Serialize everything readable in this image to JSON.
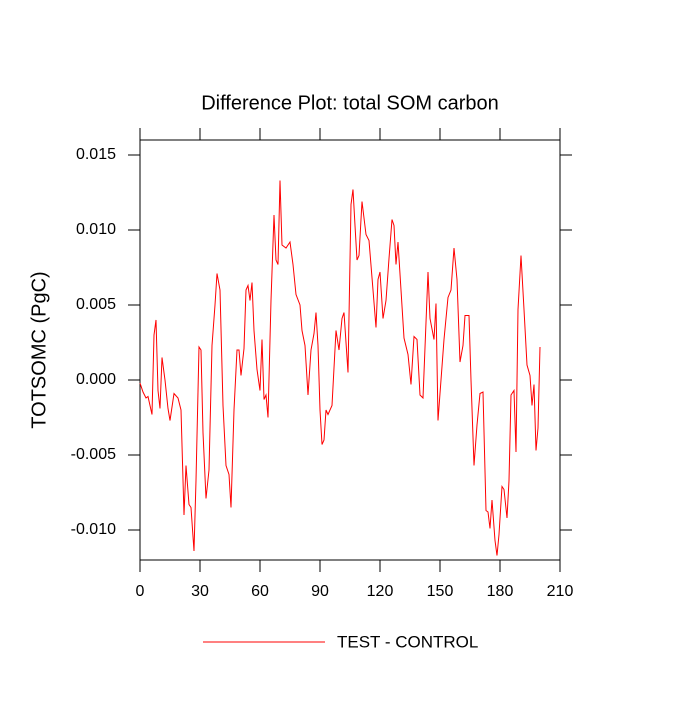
{
  "chart_data": {
    "type": "line",
    "title": "Difference Plot: total SOM carbon",
    "y_label": "TOTSOMC  (PgC)",
    "x": [
      0,
      1.5,
      3,
      4,
      6,
      7,
      8,
      9,
      10,
      11,
      12.5,
      14,
      15,
      17,
      19,
      20.5,
      22,
      23,
      24.5,
      25.5,
      27,
      28,
      29.5,
      30.5,
      31.5,
      33,
      34.5,
      36,
      37.5,
      38.5,
      40,
      41.5,
      43,
      44.5,
      45.5,
      47,
      48.5,
      49.5,
      50.5,
      52,
      53,
      54,
      55,
      56,
      57,
      58.5,
      60,
      61,
      62,
      63,
      64,
      65.5,
      67,
      68,
      69,
      70,
      71,
      73,
      75,
      76.5,
      78,
      80,
      81,
      82.5,
      84,
      85.5,
      87,
      88,
      89,
      90,
      91,
      92,
      93,
      94,
      96,
      98,
      99.5,
      101,
      102,
      104,
      105.5,
      106.5,
      107.5,
      108.5,
      109.5,
      111,
      113,
      114.5,
      116.5,
      118,
      119,
      120,
      121.5,
      123,
      124.5,
      126,
      127,
      128,
      129,
      130.5,
      132,
      134,
      135.5,
      137,
      138.5,
      140,
      141.5,
      144,
      145,
      147,
      148,
      149,
      150.5,
      152,
      154,
      155.5,
      157,
      158.5,
      160,
      161.5,
      162.5,
      164.5,
      165.5,
      167,
      168.5,
      170,
      171.5,
      173,
      174,
      175,
      176,
      177.5,
      178.5,
      179.5,
      181,
      182,
      183.5,
      184.5,
      185.5,
      187,
      188,
      189,
      190.5,
      192,
      193.5,
      195,
      196,
      197,
      198,
      199,
      200
    ],
    "series": [
      {
        "name": "TEST - CONTROL",
        "color": "#ff0000",
        "values": [
          -0.0002,
          -0.0008,
          -0.0012,
          -0.0011,
          -0.0023,
          0.003,
          0.004,
          -0.0007,
          -0.0019,
          0.0015,
          0,
          -0.0019,
          -0.0027,
          -0.0009,
          -0.0012,
          -0.002,
          -0.009,
          -0.0057,
          -0.0083,
          -0.0085,
          -0.0114,
          -0.0067,
          0.0022,
          0.002,
          -0.0035,
          -0.0079,
          -0.006,
          0.0023,
          0.005,
          0.0071,
          0.006,
          -0.0017,
          -0.0057,
          -0.0063,
          -0.0085,
          -0.002,
          0.002,
          0.002,
          0.0003,
          0.0021,
          0.006,
          0.0063,
          0.0053,
          0.0065,
          0.0033,
          0.0007,
          -0.0007,
          0.0027,
          -0.0013,
          -0.001,
          -0.0025,
          0.0053,
          0.011,
          0.008,
          0.0077,
          0.0133,
          0.009,
          0.0088,
          0.0092,
          0.0077,
          0.0057,
          0.005,
          0.0033,
          0.0023,
          -0.001,
          0.002,
          0.0031,
          0.0045,
          0.0023,
          -0.002,
          -0.0043,
          -0.004,
          -0.002,
          -0.0023,
          -0.0017,
          0.0033,
          0.002,
          0.0041,
          0.0045,
          0.0005,
          0.0117,
          0.0127,
          0.0103,
          0.008,
          0.0083,
          0.0119,
          0.0097,
          0.0093,
          0.006,
          0.0035,
          0.0067,
          0.0072,
          0.0041,
          0.0053,
          0.0081,
          0.0107,
          0.0103,
          0.0077,
          0.0092,
          0.006,
          0.0028,
          0.0017,
          -0.0003,
          0.0029,
          0.0027,
          -0.001,
          -0.0012,
          0.0072,
          0.0041,
          0.0027,
          0.0051,
          -0.0027,
          0,
          0.0027,
          0.0055,
          0.006,
          0.0088,
          0.0067,
          0.0012,
          0.0023,
          0.0043,
          0.0043,
          0,
          -0.0057,
          -0.003,
          -0.0009,
          -0.0008,
          -0.0087,
          -0.0088,
          -0.0099,
          -0.008,
          -0.0107,
          -0.0117,
          -0.0103,
          -0.0071,
          -0.0073,
          -0.0092,
          -0.0067,
          -0.001,
          -0.0007,
          -0.0048,
          0.0047,
          0.0083,
          0.0047,
          0.001,
          0.0003,
          -0.0017,
          -0.0003,
          -0.0047,
          -0.0032,
          0.0022
        ]
      }
    ],
    "xlim": [
      0,
      210
    ],
    "xticks": [
      0,
      30,
      60,
      90,
      120,
      150,
      180,
      210
    ],
    "ylim": [
      -0.012,
      0.016
    ],
    "yticks": [
      {
        "value": -0.01,
        "label": "-0.010"
      },
      {
        "value": -0.005,
        "label": "-0.005"
      },
      {
        "value": 0,
        "label": "0.000"
      },
      {
        "value": 0.005,
        "label": "0.005"
      },
      {
        "value": 0.01,
        "label": "0.010"
      },
      {
        "value": 0.015,
        "label": "0.015"
      }
    ]
  }
}
